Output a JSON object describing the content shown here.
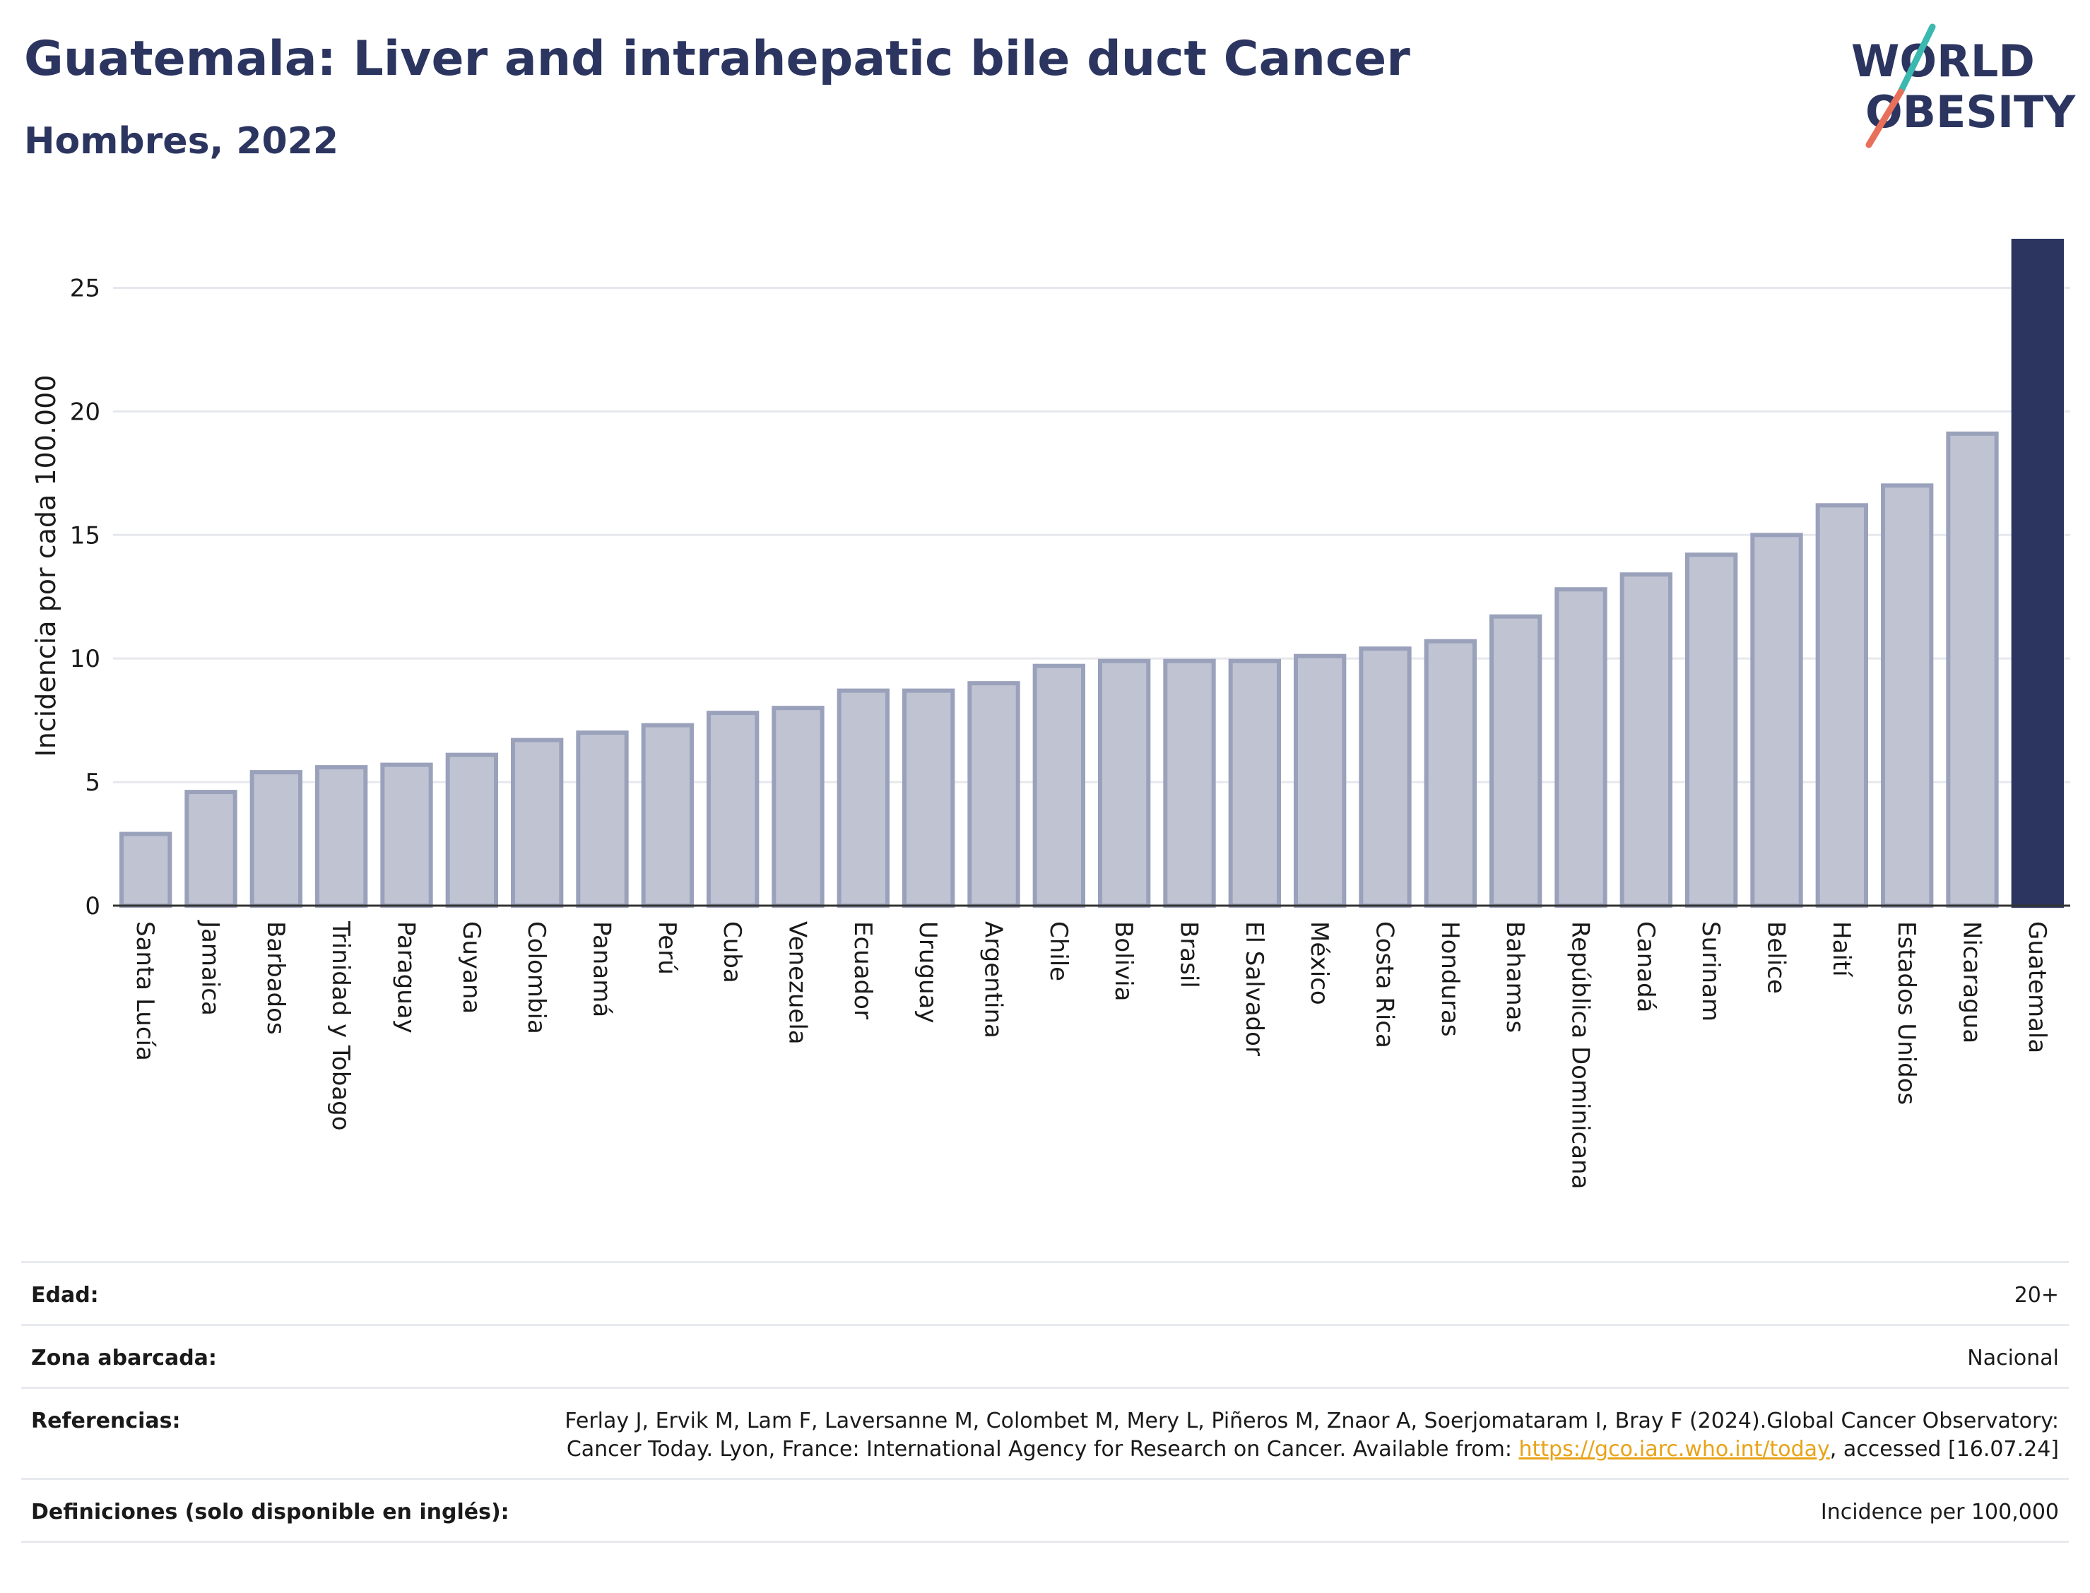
{
  "title": "Guatemala: Liver and intrahepatic bile duct Cancer",
  "subtitle": "Hombres, 2022",
  "logo": {
    "line1": "WORLD",
    "line2": "OBESITY",
    "accent_teal": "#3bb8b0",
    "accent_coral": "#e8705a",
    "text_color": "#2b3560"
  },
  "colors": {
    "bar": "#c0c4d2",
    "bar_border": "#9aa1bb",
    "highlight": "#2b3560",
    "grid": "#e6e8ee",
    "axis": "#333333"
  },
  "chart_data": {
    "type": "bar",
    "title": "Guatemala: Liver and intrahepatic bile duct Cancer",
    "subtitle": "Hombres, 2022",
    "xlabel": "",
    "ylabel": "Incidencia por cada 100.000",
    "ylim": [
      0,
      27.5
    ],
    "yticks": [
      0,
      5,
      10,
      15,
      20,
      25
    ],
    "grid": true,
    "highlight": "Guatemala",
    "categories": [
      "Santa Lucía",
      "Jamaica",
      "Barbados",
      "Trinidad y Tobago",
      "Paraguay",
      "Guyana",
      "Colombia",
      "Panamá",
      "Perú",
      "Cuba",
      "Venezuela",
      "Ecuador",
      "Uruguay",
      "Argentina",
      "Chile",
      "Bolivia",
      "Brasil",
      "El Salvador",
      "México",
      "Costa Rica",
      "Honduras",
      "Bahamas",
      "República Dominicana",
      "Canadá",
      "Surinam",
      "Belice",
      "Haití",
      "Estados Unidos",
      "Nicaragua",
      "Guatemala"
    ],
    "values": [
      2.9,
      4.6,
      5.4,
      5.6,
      5.7,
      6.1,
      6.7,
      7.0,
      7.3,
      7.8,
      8.0,
      8.7,
      8.7,
      9.0,
      9.7,
      9.9,
      9.9,
      9.9,
      10.1,
      10.4,
      10.7,
      11.7,
      12.8,
      13.4,
      14.2,
      15.0,
      16.2,
      17.0,
      19.1,
      26.9
    ]
  },
  "meta": {
    "age_label": "Edad:",
    "age_value": "20+",
    "area_label": "Zona abarcada:",
    "area_value": "Nacional",
    "refs_label": "Referencias:",
    "refs_text_1": "Ferlay J, Ervik M, Lam F, Laversanne M, Colombet M, Mery L, Piñeros M, Znaor A, Soerjomataram I, Bray F (2024).Global Cancer Observatory: Cancer Today. Lyon, France: International Agency for Research on Cancer. Available from: ",
    "refs_link": "https://gco.iarc.who.int/today",
    "refs_text_2": ", accessed [16.07.24]",
    "defs_label": "Definiciones (solo disponible en inglés):",
    "defs_value": "Incidence per 100,000"
  }
}
